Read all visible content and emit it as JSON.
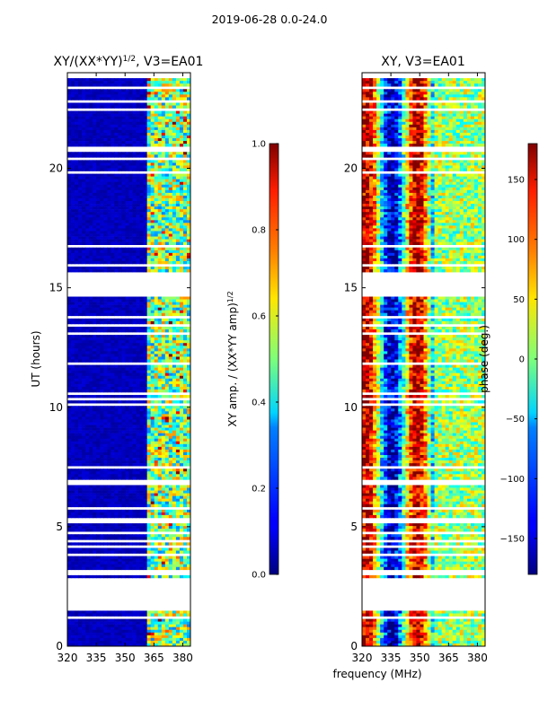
{
  "figure": {
    "suptitle": "2019-06-28 0.0-24.0",
    "xlabel": "frequency (MHz)"
  },
  "chart_data": [
    {
      "type": "heatmap",
      "title": "XY/(XX*YY)",
      "title_exponent": "1/2",
      "title_suffix": ", V3=EA01",
      "xlabel": "frequency (MHz)",
      "ylabel": "UT (hours)",
      "x_ticks": [
        "320",
        "335",
        "350",
        "365",
        "380"
      ],
      "x_tick_values": [
        320,
        335,
        350,
        365,
        380
      ],
      "xlim": [
        320,
        384
      ],
      "y_ticks": [
        "0",
        "5",
        "10",
        "15",
        "20"
      ],
      "y_tick_values": [
        0,
        5,
        10,
        15,
        20
      ],
      "ylim": [
        0,
        24
      ],
      "colorbar": {
        "label": "XY amp. / (XX*YY amp)",
        "label_exponent": "1/2",
        "range": [
          0.0,
          1.0
        ],
        "ticks": [
          "0.0",
          "0.2",
          "0.4",
          "0.6",
          "0.8",
          "1.0"
        ],
        "tick_values": [
          0.0,
          0.2,
          0.4,
          0.6,
          0.8,
          1.0
        ]
      },
      "data_gaps_hours": [
        [
          1.55,
          2.7
        ],
        [
          14.6,
          15.7
        ]
      ],
      "colormap": "jet"
    },
    {
      "type": "heatmap",
      "title": "XY, V3=EA01",
      "xlabel": "frequency (MHz)",
      "ylabel": "",
      "x_ticks": [
        "320",
        "335",
        "350",
        "365",
        "380"
      ],
      "x_tick_values": [
        320,
        335,
        350,
        365,
        380
      ],
      "xlim": [
        320,
        384
      ],
      "y_ticks": [
        "0",
        "5",
        "10",
        "15",
        "20"
      ],
      "y_tick_values": [
        0,
        5,
        10,
        15,
        20
      ],
      "ylim": [
        0,
        24
      ],
      "colorbar": {
        "label": "phase (deg.)",
        "range": [
          -180,
          180
        ],
        "ticks": [
          "−150",
          "−100",
          "−50",
          "0",
          "50",
          "100",
          "150"
        ],
        "tick_values": [
          -150,
          -100,
          -50,
          0,
          50,
          100,
          150
        ]
      },
      "data_gaps_hours": [
        [
          1.55,
          2.7
        ],
        [
          14.6,
          15.7
        ]
      ],
      "colormap": "jet"
    }
  ]
}
